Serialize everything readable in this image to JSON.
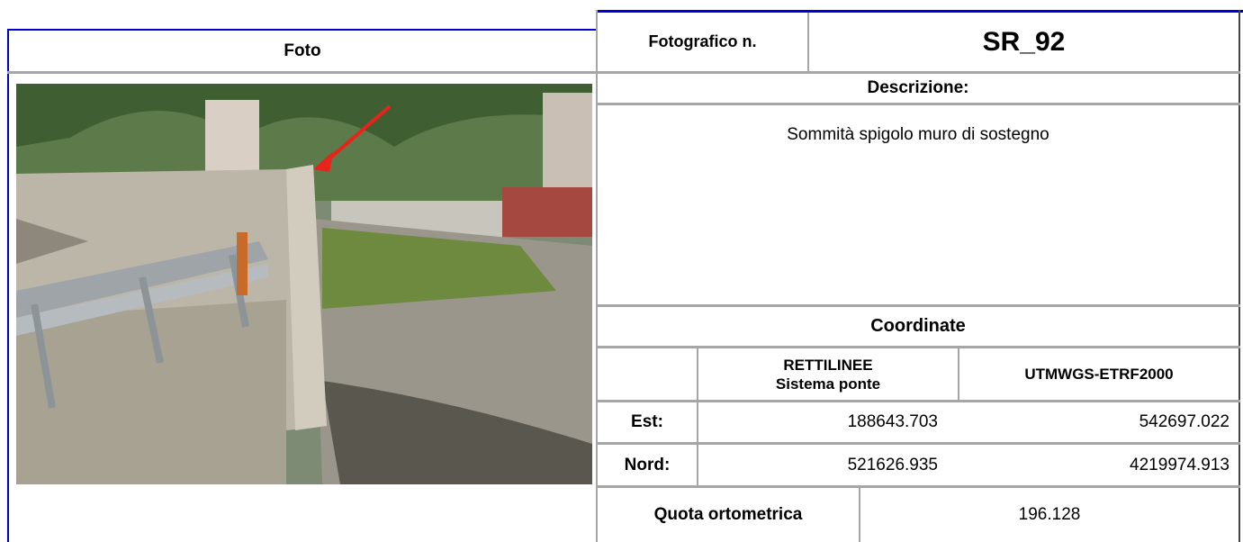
{
  "left": {
    "header": "Foto"
  },
  "right": {
    "photo_number_label": "Fotografico n.",
    "photo_number": "SR_92",
    "description_label": "Descrizione:",
    "description": "Sommità spigolo muro di sostegno",
    "coordinates_label": "Coordinate",
    "column_headers": [
      [
        "RETTILINEE",
        "Sistema ponte"
      ],
      "UTMWGS-ETRF2000"
    ],
    "rows": [
      {
        "label": "Est:",
        "values": [
          "188643.703",
          "542697.022"
        ]
      },
      {
        "label": "Nord:",
        "values": [
          "521626.935",
          "4219974.913"
        ]
      }
    ],
    "elevation_label": "Quota ortometrica",
    "elevation": "196.128"
  }
}
